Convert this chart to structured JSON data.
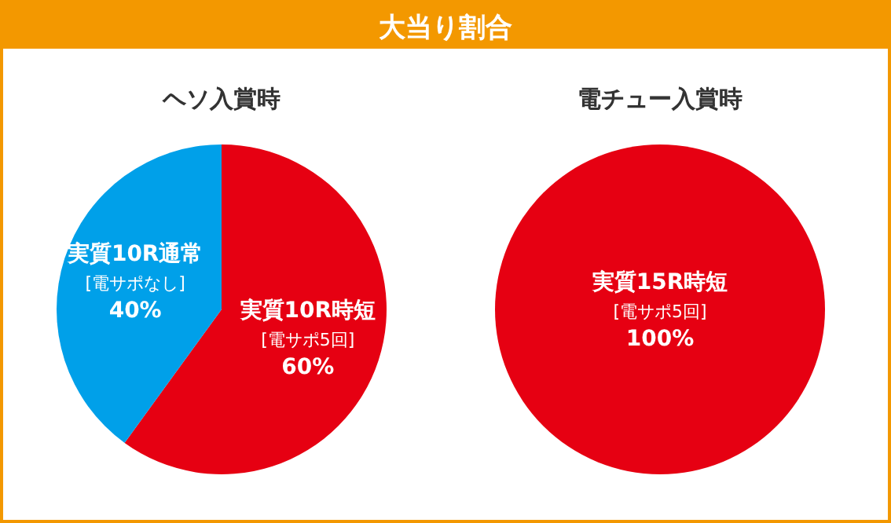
{
  "chart_data": [
    {
      "type": "other",
      "title": "大当り割合",
      "color": "#f39800"
    },
    {
      "type": "pie",
      "title": "ヘソ入賞時",
      "categories": [
        "実質10R時短\n[電サポ5回]",
        "実質10R通常\n[電サポなし]"
      ],
      "values": [
        60,
        40
      ],
      "colors": [
        "#e60012",
        "#00a0e9"
      ],
      "value_labels": [
        "60%",
        "40%"
      ]
    },
    {
      "type": "pie",
      "title": "電チュー入賞時",
      "categories": [
        "実質15R時短\n[電サポ5回]"
      ],
      "values": [
        100
      ],
      "colors": [
        "#e60012"
      ],
      "value_labels": [
        "100%"
      ]
    }
  ]
}
